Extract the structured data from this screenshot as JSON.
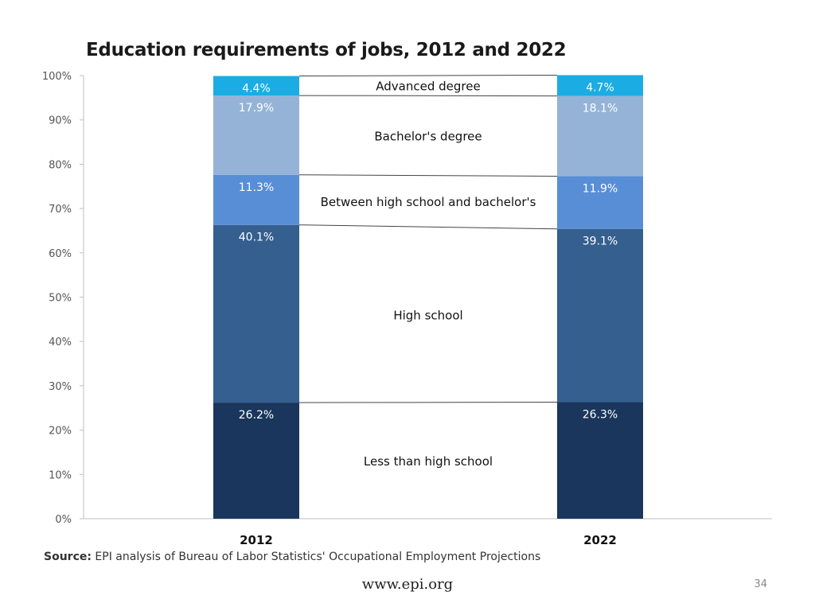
{
  "title": "Education requirements of jobs, 2012 and 2022",
  "source_label": "Source:",
  "source_text": "EPI analysis of Bureau of Labor Statistics' Occupational Employment Projections",
  "footer_url": "www.epi.org",
  "page_number": "34",
  "chart_data": {
    "type": "bar",
    "stacked": true,
    "title": "Education requirements of jobs, 2012 and 2022",
    "categories": [
      "2012",
      "2022"
    ],
    "ylim": [
      0,
      100
    ],
    "yticks": [
      "0%",
      "10%",
      "20%",
      "30%",
      "40%",
      "50%",
      "60%",
      "70%",
      "80%",
      "90%",
      "100%"
    ],
    "grid": false,
    "legend": "center, between bars",
    "series": [
      {
        "name": "Less than high school",
        "values": [
          26.2,
          26.3
        ],
        "labels": [
          "26.2%",
          "26.3%"
        ],
        "color": "#1a365c"
      },
      {
        "name": "High school",
        "values": [
          40.1,
          39.1
        ],
        "labels": [
          "40.1%",
          "39.1%"
        ],
        "color": "#345f8f"
      },
      {
        "name": "Between high school and bachelor's",
        "values": [
          11.3,
          11.9
        ],
        "labels": [
          "11.3%",
          "11.9%"
        ],
        "color": "#588ed5"
      },
      {
        "name": "Bachelor's degree",
        "values": [
          17.9,
          18.1
        ],
        "labels": [
          "17.9%",
          "18.1%"
        ],
        "color": "#95b3d7"
      },
      {
        "name": "Advanced degree",
        "values": [
          4.4,
          4.7
        ],
        "labels": [
          "4.4%",
          "4.7%"
        ],
        "color": "#1cace4"
      }
    ]
  }
}
